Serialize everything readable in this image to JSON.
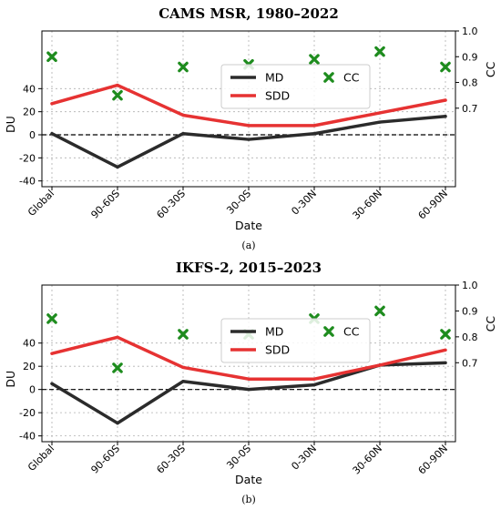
{
  "chart_data": [
    {
      "type": "line",
      "title": "CAMS MSR, 1980–2022",
      "caption": "(a)",
      "xlabel": "Date",
      "ylabel": "DU",
      "y2label": "CC",
      "categories": [
        "Global",
        "90-60S",
        "60-30S",
        "30-0S",
        "0-30N",
        "30-60N",
        "60-90N"
      ],
      "ylim": [
        -45,
        90
      ],
      "yticks": [
        -40,
        -20,
        0,
        20,
        40
      ],
      "y2lim": [
        0.395,
        1.0
      ],
      "y2ticks": [
        0.7,
        0.8,
        0.9,
        1.0
      ],
      "grid": true,
      "legend": "center",
      "zero_line": 0,
      "series": [
        {
          "name": "MD",
          "axis": "left",
          "color": "#2b2b2b",
          "values": [
            1,
            -28,
            1,
            -4,
            1,
            11,
            16
          ]
        },
        {
          "name": "SDD",
          "axis": "left",
          "color": "#e63232",
          "values": [
            27,
            43,
            17,
            8,
            8,
            19,
            30
          ]
        },
        {
          "name": "CC",
          "axis": "right",
          "marker": "x",
          "color": "#1e8c1e",
          "values": [
            0.9,
            0.75,
            0.86,
            0.87,
            0.89,
            0.92,
            0.86
          ]
        }
      ]
    },
    {
      "type": "line",
      "title": "IKFS-2, 2015–2023",
      "caption": "(b)",
      "xlabel": "Date",
      "ylabel": "DU",
      "y2label": "CC",
      "categories": [
        "Global",
        "90-60S",
        "60-30S",
        "30-0S",
        "0-30N",
        "30-60N",
        "60-90N"
      ],
      "ylim": [
        -45,
        90
      ],
      "yticks": [
        -40,
        -20,
        0,
        20,
        40
      ],
      "y2lim": [
        0.395,
        1.0
      ],
      "y2ticks": [
        0.7,
        0.8,
        0.9,
        1.0
      ],
      "grid": true,
      "legend": "center",
      "zero_line": 0,
      "series": [
        {
          "name": "MD",
          "axis": "left",
          "color": "#2b2b2b",
          "values": [
            5,
            -29,
            7,
            0,
            4,
            21,
            23
          ]
        },
        {
          "name": "SDD",
          "axis": "left",
          "color": "#e63232",
          "values": [
            31,
            45,
            19,
            9,
            9,
            21,
            34
          ]
        },
        {
          "name": "CC",
          "axis": "right",
          "marker": "x",
          "color": "#1e8c1e",
          "values": [
            0.87,
            0.68,
            0.81,
            0.81,
            0.87,
            0.9,
            0.81
          ]
        }
      ]
    }
  ]
}
